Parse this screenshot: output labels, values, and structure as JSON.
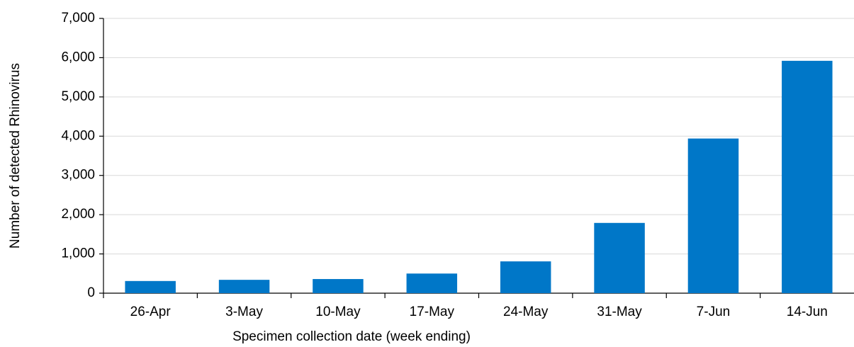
{
  "chart_data": {
    "type": "bar",
    "x_label": "Specimen collection date (week ending)",
    "y_label": "Number  of detected Rhinovirus",
    "categories": [
      "26-Apr",
      "3-May",
      "10-May",
      "17-May",
      "24-May",
      "31-May",
      "7-Jun",
      "14-Jun"
    ],
    "values": [
      310,
      340,
      360,
      500,
      810,
      1790,
      3940,
      5920
    ],
    "color": "#0077c8",
    "ylim": [
      0,
      7000
    ],
    "yticks": [
      0,
      {
        "value": 1000,
        "label": "1,000"
      },
      {
        "value": 2000,
        "label": "2,000"
      },
      {
        "value": 3000,
        "label": "3,000"
      },
      {
        "value": 4000,
        "label": "4,000"
      },
      {
        "value": 5000,
        "label": "5,000"
      },
      {
        "value": 6000,
        "label": "6,000"
      },
      {
        "value": 7000,
        "label": "7,000"
      }
    ],
    "grid": true
  }
}
